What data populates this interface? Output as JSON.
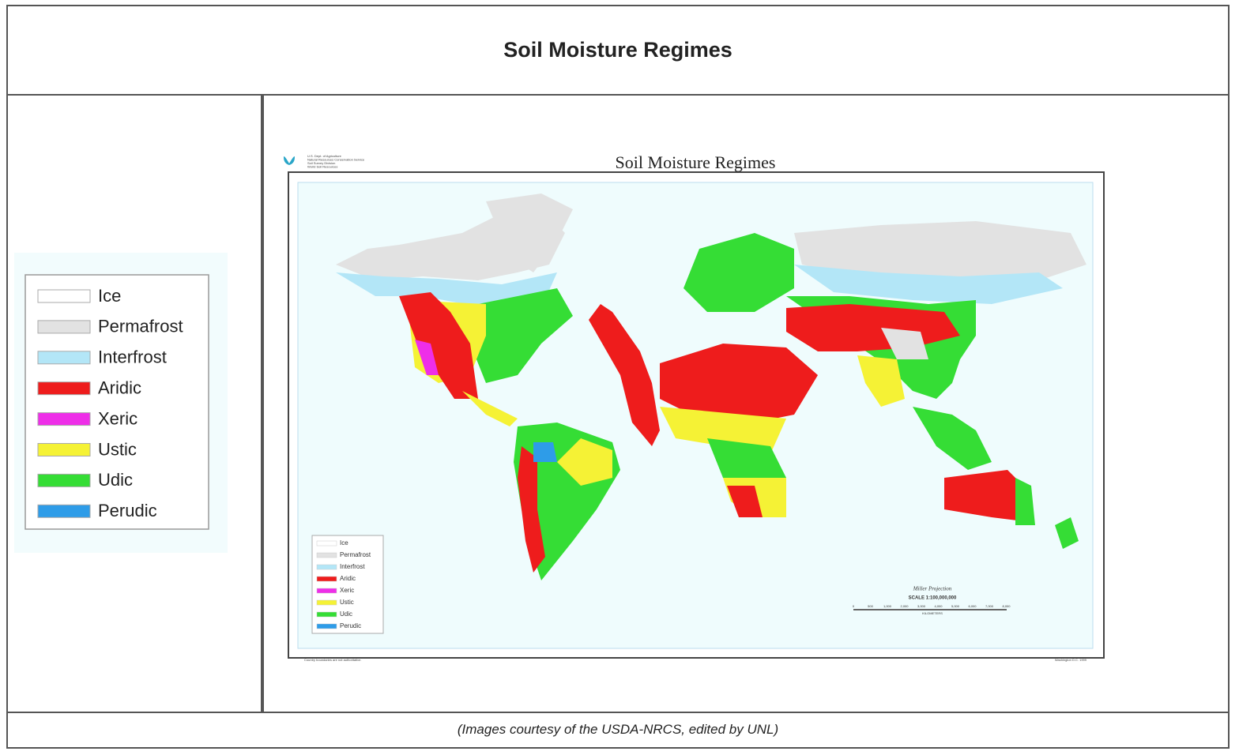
{
  "header": {
    "title": "Soil Moisture Regimes"
  },
  "legend": {
    "items": [
      {
        "label": "Ice",
        "color": "#ffffff"
      },
      {
        "label": "Permafrost",
        "color": "#e2e2e2"
      },
      {
        "label": "Interfrost",
        "color": "#b3e6f7"
      },
      {
        "label": "Aridic",
        "color": "#ee1c1c"
      },
      {
        "label": "Xeric",
        "color": "#ee2ee8"
      },
      {
        "label": "Ustic",
        "color": "#f5f235"
      },
      {
        "label": "Udic",
        "color": "#35dd35"
      },
      {
        "label": "Perudic",
        "color": "#2e9ce8"
      }
    ]
  },
  "map": {
    "title": "Soil Moisture Regimes",
    "agency": [
      "U.S. Dept. of Agriculture",
      "Natural Resources Conservation Service",
      "Soil Survey Division",
      "World Soil Resources"
    ],
    "projection": "Miller Projection",
    "scale": "SCALE 1:100,000,000",
    "scale_ticks": [
      "0",
      "500",
      "1,000",
      "2,000",
      "3,000",
      "4,000",
      "5,000",
      "6,000",
      "7,000",
      "8,000"
    ],
    "scale_unit": "KILOMETERS",
    "note": "Country boundaries are not authoritative.",
    "place_date": "Washington D.C. 1999"
  },
  "caption": "(Images courtesy of the USDA-NRCS, edited by UNL)"
}
